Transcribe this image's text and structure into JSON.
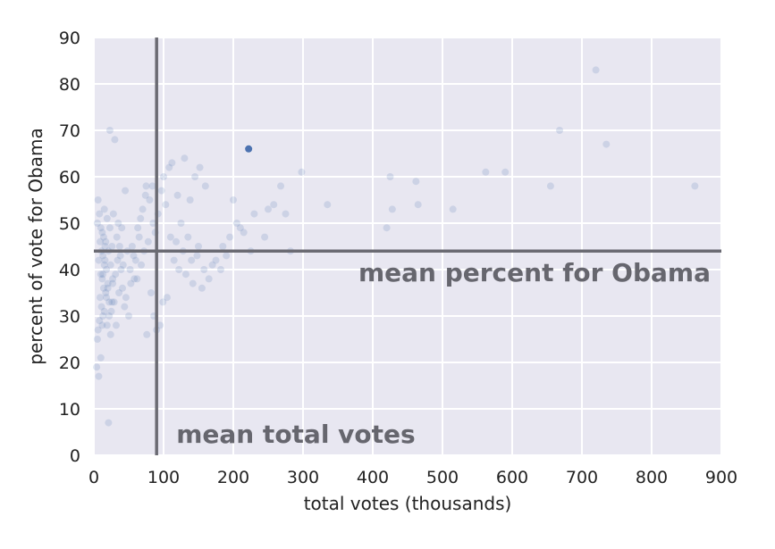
{
  "chart_data": {
    "type": "scatter",
    "title": "",
    "xlabel": "total votes (thousands)",
    "ylabel": "percent of vote for Obama",
    "xlim": [
      0,
      900
    ],
    "ylim": [
      0,
      90
    ],
    "xticks": [
      0,
      100,
      200,
      300,
      400,
      500,
      600,
      700,
      800,
      900
    ],
    "yticks": [
      0,
      10,
      20,
      30,
      40,
      50,
      60,
      70,
      80,
      90
    ],
    "grid": true,
    "background_color": "#e8e7f1",
    "point_color": "#4c72b0",
    "reference_line_color": "#6b6b73",
    "highlight_point": {
      "x": 222,
      "y": 66
    },
    "reference_lines": [
      {
        "orientation": "vertical",
        "x": 90,
        "label": "mean total votes"
      },
      {
        "orientation": "horizontal",
        "y": 44,
        "label": "mean percent for Obama"
      }
    ],
    "points": [
      [
        6,
        55
      ],
      [
        8,
        52
      ],
      [
        5,
        50
      ],
      [
        10,
        49
      ],
      [
        12,
        48
      ],
      [
        14,
        47
      ],
      [
        9,
        46
      ],
      [
        16,
        45
      ],
      [
        11,
        44
      ],
      [
        13,
        43
      ],
      [
        7,
        42
      ],
      [
        15,
        41
      ],
      [
        18,
        40
      ],
      [
        10,
        39
      ],
      [
        12,
        38
      ],
      [
        20,
        37
      ],
      [
        14,
        36
      ],
      [
        17,
        35
      ],
      [
        9,
        34
      ],
      [
        22,
        33
      ],
      [
        11,
        32
      ],
      [
        25,
        31
      ],
      [
        13,
        30
      ],
      [
        8,
        29
      ],
      [
        19,
        28
      ],
      [
        6,
        27
      ],
      [
        24,
        26
      ],
      [
        5,
        25
      ],
      [
        4,
        19
      ],
      [
        7,
        17
      ],
      [
        10,
        21
      ],
      [
        21,
        7
      ],
      [
        30,
        68
      ],
      [
        23,
        70
      ],
      [
        40,
        49
      ],
      [
        35,
        50
      ],
      [
        45,
        57
      ],
      [
        28,
        52
      ],
      [
        33,
        47
      ],
      [
        26,
        45
      ],
      [
        38,
        43
      ],
      [
        42,
        41
      ],
      [
        31,
        39
      ],
      [
        27,
        37
      ],
      [
        36,
        35
      ],
      [
        29,
        33
      ],
      [
        44,
        32
      ],
      [
        50,
        30
      ],
      [
        32,
        28
      ],
      [
        55,
        45
      ],
      [
        60,
        42
      ],
      [
        48,
        44
      ],
      [
        52,
        40
      ],
      [
        58,
        38
      ],
      [
        65,
        47
      ],
      [
        70,
        53
      ],
      [
        75,
        58
      ],
      [
        80,
        55
      ],
      [
        85,
        50
      ],
      [
        88,
        48
      ],
      [
        78,
        46
      ],
      [
        72,
        44
      ],
      [
        68,
        41
      ],
      [
        62,
        38
      ],
      [
        82,
        35
      ],
      [
        86,
        30
      ],
      [
        90,
        27
      ],
      [
        76,
        26
      ],
      [
        95,
        28
      ],
      [
        99,
        33
      ],
      [
        105,
        34
      ],
      [
        100,
        60
      ],
      [
        108,
        62
      ],
      [
        112,
        63
      ],
      [
        120,
        56
      ],
      [
        125,
        50
      ],
      [
        130,
        64
      ],
      [
        138,
        55
      ],
      [
        145,
        60
      ],
      [
        152,
        62
      ],
      [
        160,
        58
      ],
      [
        118,
        46
      ],
      [
        128,
        44
      ],
      [
        140,
        42
      ],
      [
        150,
        45
      ],
      [
        158,
        40
      ],
      [
        165,
        38
      ],
      [
        135,
        47
      ],
      [
        148,
        43
      ],
      [
        175,
        42
      ],
      [
        182,
        40
      ],
      [
        190,
        43
      ],
      [
        200,
        55
      ],
      [
        210,
        49
      ],
      [
        215,
        48
      ],
      [
        225,
        44
      ],
      [
        245,
        47
      ],
      [
        250,
        53
      ],
      [
        258,
        54
      ],
      [
        268,
        58
      ],
      [
        275,
        52
      ],
      [
        282,
        44
      ],
      [
        298,
        61
      ],
      [
        335,
        54
      ],
      [
        420,
        49
      ],
      [
        425,
        60
      ],
      [
        428,
        53
      ],
      [
        462,
        59
      ],
      [
        465,
        54
      ],
      [
        515,
        53
      ],
      [
        562,
        61
      ],
      [
        590,
        61
      ],
      [
        655,
        58
      ],
      [
        668,
        70
      ],
      [
        720,
        83
      ],
      [
        735,
        67
      ],
      [
        862,
        58
      ],
      [
        15,
        53
      ],
      [
        19,
        51
      ],
      [
        23,
        49
      ],
      [
        17,
        46
      ],
      [
        21,
        44
      ],
      [
        16,
        42
      ],
      [
        24,
        41
      ],
      [
        13,
        39
      ],
      [
        27,
        38
      ],
      [
        20,
        36
      ],
      [
        18,
        34
      ],
      [
        26,
        33
      ],
      [
        15,
        31
      ],
      [
        22,
        30
      ],
      [
        12,
        28
      ],
      [
        37,
        45
      ],
      [
        34,
        42
      ],
      [
        39,
        40
      ],
      [
        41,
        36
      ],
      [
        46,
        34
      ],
      [
        53,
        37
      ],
      [
        57,
        43
      ],
      [
        63,
        49
      ],
      [
        67,
        51
      ],
      [
        74,
        56
      ],
      [
        84,
        58
      ],
      [
        92,
        52
      ],
      [
        97,
        57
      ],
      [
        103,
        54
      ],
      [
        110,
        47
      ],
      [
        115,
        42
      ],
      [
        122,
        40
      ],
      [
        132,
        39
      ],
      [
        142,
        37
      ],
      [
        155,
        36
      ],
      [
        170,
        41
      ],
      [
        185,
        45
      ],
      [
        195,
        47
      ],
      [
        205,
        50
      ],
      [
        230,
        52
      ]
    ]
  },
  "label_color": "#66666e"
}
